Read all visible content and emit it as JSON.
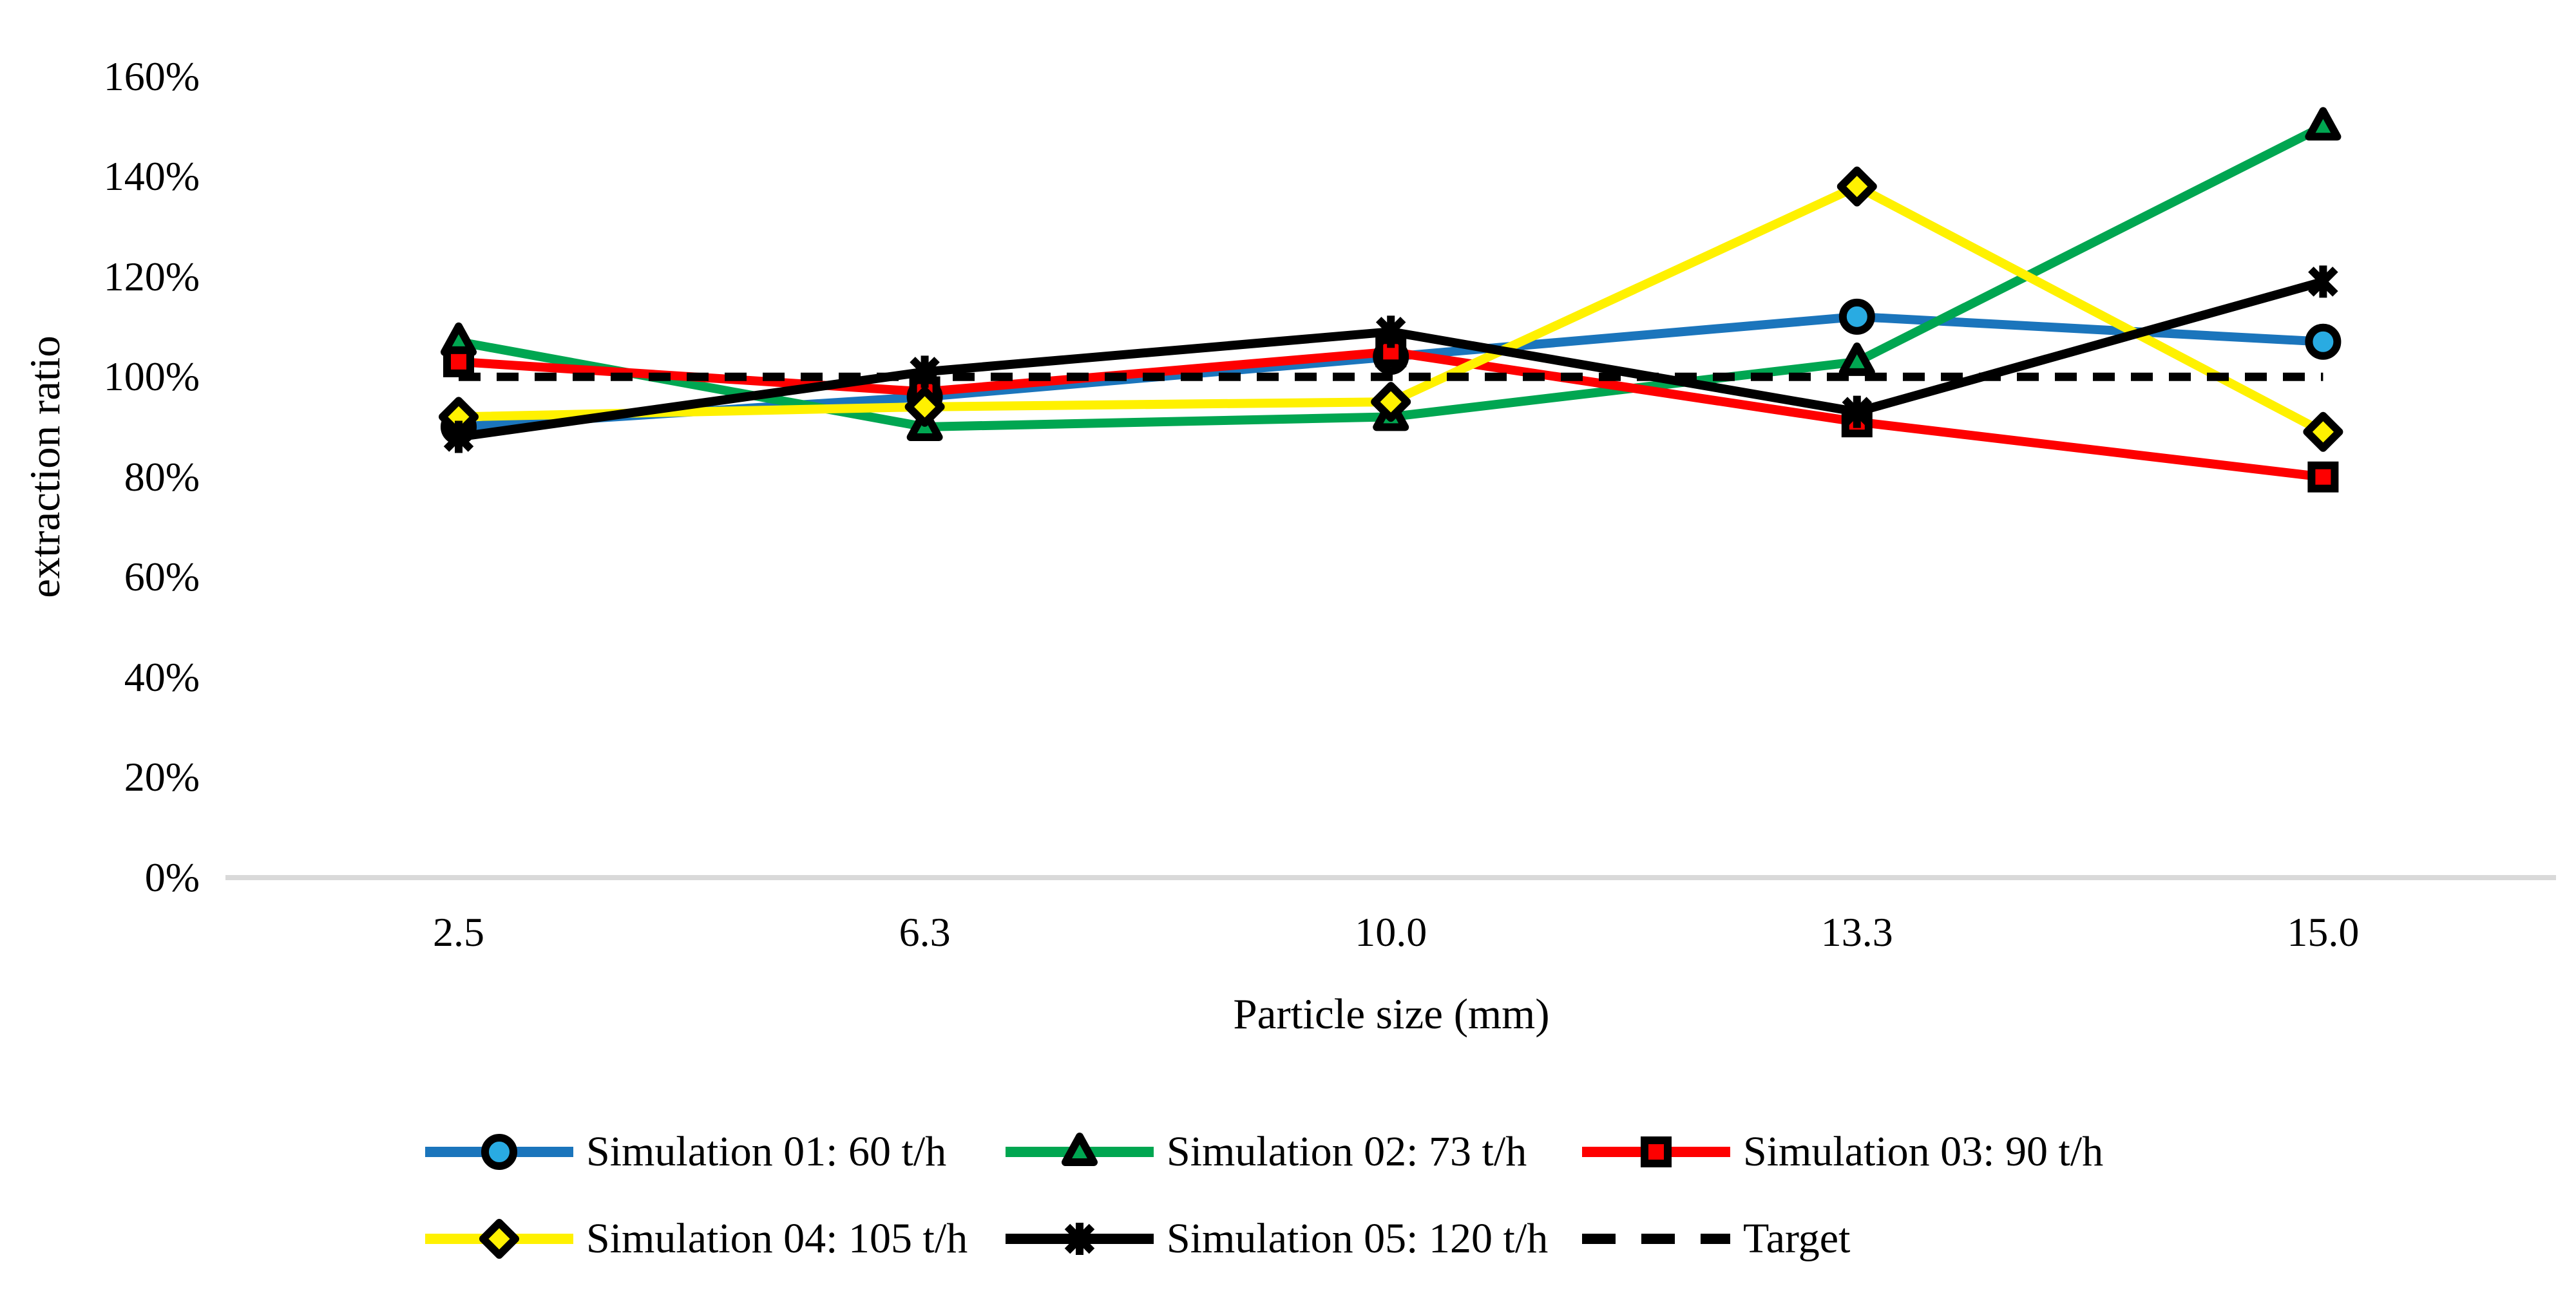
{
  "chart_data": {
    "type": "line",
    "title": "",
    "xlabel": "Particle size (mm)",
    "ylabel": "extraction ratio",
    "categories": [
      "2.5",
      "6.3",
      "10.0",
      "13.3",
      "15.0"
    ],
    "y_ticks": [
      "0%",
      "20%",
      "40%",
      "60%",
      "80%",
      "100%",
      "120%",
      "140%",
      "160%"
    ],
    "ylim": [
      0,
      160
    ],
    "y_unit": "percent",
    "grid": "off",
    "baseline_axis_color": "#D9D9D9",
    "legend_position": "bottom-two-rows",
    "series": [
      {
        "name": "Simulation 01: 60 t/h",
        "marker": "circle",
        "line_color": "#1B75BC",
        "marker_fill": "#29ABE2",
        "dashed": false,
        "values": [
          90,
          96,
          104,
          112,
          107
        ]
      },
      {
        "name": "Simulation 02: 73 t/h",
        "marker": "triangle",
        "line_color": "#00A651",
        "marker_fill": "#00A651",
        "dashed": false,
        "values": [
          107,
          90,
          92,
          103,
          150
        ]
      },
      {
        "name": "Simulation 03: 90 t/h",
        "marker": "square",
        "line_color": "#FE0000",
        "marker_fill": "#FE0000",
        "dashed": false,
        "values": [
          103,
          97,
          105,
          91,
          80
        ]
      },
      {
        "name": "Simulation 04: 105 t/h",
        "marker": "diamond",
        "line_color": "#FFF100",
        "marker_fill": "#FFF100",
        "dashed": false,
        "values": [
          92,
          94,
          95,
          138,
          89
        ]
      },
      {
        "name": "Simulation 05: 120 t/h",
        "marker": "asterisk",
        "line_color": "#000000",
        "marker_fill": "#000000",
        "dashed": false,
        "values": [
          88,
          101,
          109,
          93,
          119
        ]
      },
      {
        "name": "Target",
        "marker": "none",
        "line_color": "#000000",
        "marker_fill": "#000000",
        "dashed": true,
        "values": [
          100,
          100,
          100,
          100,
          100
        ]
      }
    ]
  }
}
